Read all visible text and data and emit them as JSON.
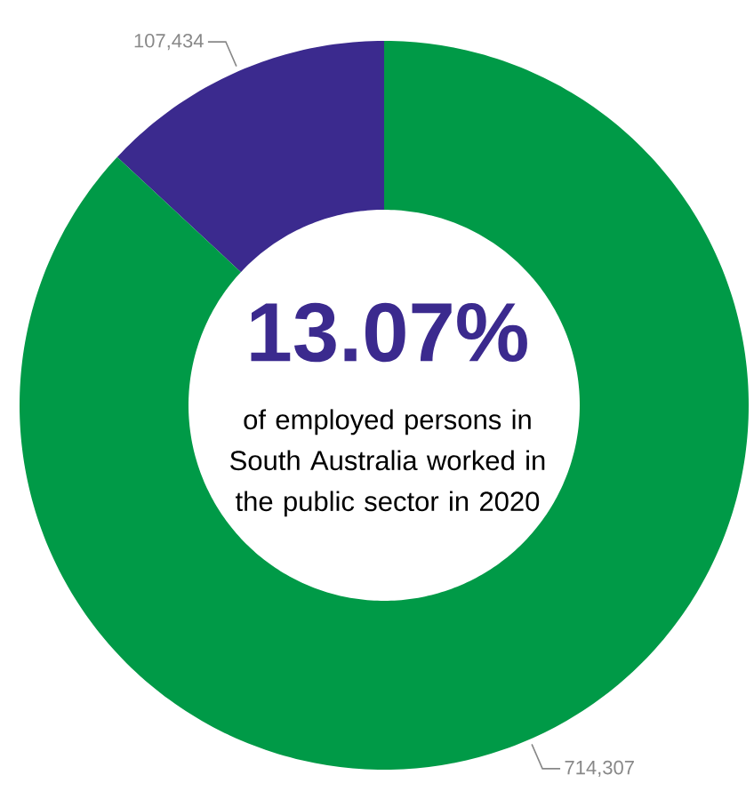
{
  "chart_data": {
    "type": "donut",
    "categories": [
      null,
      null
    ],
    "values": [
      107434,
      714307
    ],
    "colors": [
      "#3b2a8e",
      "#009a47"
    ],
    "value_labels": [
      "107,434",
      "714,307"
    ],
    "annotations": [
      "13.07%",
      "of employed persons in South Australia worked in the public sector in 2020"
    ]
  }
}
